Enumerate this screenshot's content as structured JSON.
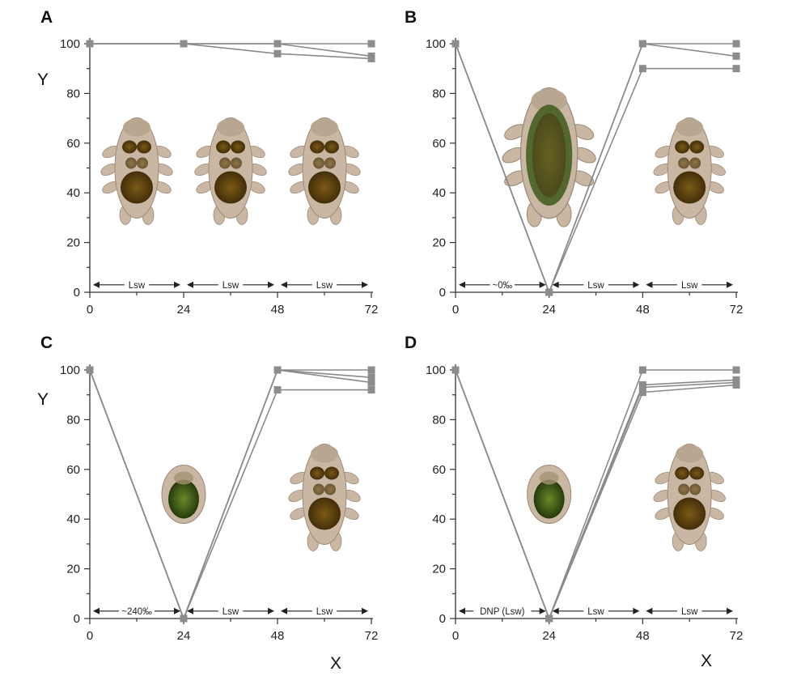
{
  "chart_data": [
    {
      "panel": "A",
      "type": "line",
      "ylabel": "Y",
      "xlabel": "",
      "xlim": [
        0,
        72
      ],
      "ylim": [
        0,
        100
      ],
      "xticks": [
        0,
        24,
        48,
        72
      ],
      "yticks": [
        0,
        20,
        40,
        60,
        80,
        100
      ],
      "series": [
        {
          "x": [
            0,
            24,
            48,
            72
          ],
          "y": [
            100,
            100,
            100,
            100
          ]
        },
        {
          "x": [
            0,
            24,
            48,
            72
          ],
          "y": [
            100,
            100,
            100,
            95
          ]
        },
        {
          "x": [
            0,
            24,
            48,
            72
          ],
          "y": [
            100,
            100,
            96,
            94
          ]
        }
      ],
      "intervals": [
        {
          "from": 0,
          "to": 24,
          "label": "Lsw"
        },
        {
          "from": 24,
          "to": 48,
          "label": "Lsw"
        },
        {
          "from": 48,
          "to": 72,
          "label": "Lsw"
        }
      ],
      "illustrations": [
        {
          "icon": "tardigrade-active-icon",
          "x": 12,
          "y": 50
        },
        {
          "icon": "tardigrade-active-icon",
          "x": 36,
          "y": 50
        },
        {
          "icon": "tardigrade-active-icon",
          "x": 60,
          "y": 50
        }
      ]
    },
    {
      "panel": "B",
      "type": "line",
      "ylabel": "",
      "xlabel": "",
      "xlim": [
        0,
        72
      ],
      "ylim": [
        0,
        100
      ],
      "xticks": [
        0,
        24,
        48,
        72
      ],
      "yticks": [
        0,
        20,
        40,
        60,
        80,
        100
      ],
      "series": [
        {
          "x": [
            0,
            24,
            48,
            72
          ],
          "y": [
            100,
            0,
            100,
            100
          ]
        },
        {
          "x": [
            0,
            24,
            48,
            72
          ],
          "y": [
            100,
            0,
            100,
            95
          ]
        },
        {
          "x": [
            0,
            24,
            48,
            72
          ],
          "y": [
            100,
            0,
            90,
            90
          ]
        }
      ],
      "intervals": [
        {
          "from": 0,
          "to": 24,
          "label": "~0‰"
        },
        {
          "from": 24,
          "to": 48,
          "label": "Lsw"
        },
        {
          "from": 48,
          "to": 72,
          "label": "Lsw"
        }
      ],
      "illustrations": [
        {
          "icon": "tardigrade-swollen-icon",
          "x": 24,
          "y": 56
        },
        {
          "icon": "tardigrade-active-icon",
          "x": 60,
          "y": 50
        }
      ]
    },
    {
      "panel": "C",
      "type": "line",
      "ylabel": "Y",
      "xlabel": "",
      "xlim": [
        0,
        72
      ],
      "ylim": [
        0,
        100
      ],
      "xticks": [
        0,
        24,
        48,
        72
      ],
      "yticks": [
        0,
        20,
        40,
        60,
        80,
        100
      ],
      "series": [
        {
          "x": [
            0,
            24,
            48,
            72
          ],
          "y": [
            100,
            0,
            100,
            100
          ]
        },
        {
          "x": [
            0,
            24,
            48,
            72
          ],
          "y": [
            100,
            0,
            100,
            97
          ]
        },
        {
          "x": [
            0,
            24,
            48,
            72
          ],
          "y": [
            100,
            0,
            100,
            95
          ]
        },
        {
          "x": [
            0,
            24,
            48,
            72
          ],
          "y": [
            100,
            0,
            92,
            92
          ]
        }
      ],
      "intervals": [
        {
          "from": 0,
          "to": 24,
          "label": "~240‰"
        },
        {
          "from": 24,
          "to": 48,
          "label": "Lsw"
        },
        {
          "from": 48,
          "to": 72,
          "label": "Lsw"
        }
      ],
      "illustrations": [
        {
          "icon": "tardigrade-contracted-icon",
          "x": 24,
          "y": 50
        },
        {
          "icon": "tardigrade-active-icon",
          "x": 60,
          "y": 50
        }
      ]
    },
    {
      "panel": "D",
      "type": "line",
      "ylabel": "",
      "xlabel": "X",
      "xlim": [
        0,
        72
      ],
      "ylim": [
        0,
        100
      ],
      "xticks": [
        0,
        24,
        48,
        72
      ],
      "yticks": [
        0,
        20,
        40,
        60,
        80,
        100
      ],
      "series": [
        {
          "x": [
            0,
            24,
            48,
            72
          ],
          "y": [
            100,
            0,
            100,
            100
          ]
        },
        {
          "x": [
            0,
            24,
            48,
            72
          ],
          "y": [
            100,
            0,
            94,
            96
          ]
        },
        {
          "x": [
            0,
            24,
            48,
            72
          ],
          "y": [
            100,
            0,
            93,
            95
          ]
        },
        {
          "x": [
            0,
            24,
            48,
            72
          ],
          "y": [
            100,
            0,
            91,
            94
          ]
        }
      ],
      "intervals": [
        {
          "from": 0,
          "to": 24,
          "label": "DNP (Lsw)"
        },
        {
          "from": 24,
          "to": 48,
          "label": "Lsw"
        },
        {
          "from": 48,
          "to": 72,
          "label": "Lsw"
        }
      ],
      "illustrations": [
        {
          "icon": "tardigrade-contracted-icon",
          "x": 24,
          "y": 50
        },
        {
          "icon": "tardigrade-active-icon",
          "x": 60,
          "y": 50
        }
      ]
    }
  ],
  "figure": {
    "bottom_xlabel_left": "X",
    "bottom_xlabel_right": "X",
    "colors": {
      "series": "#8a8a8a",
      "marker": "#8c8c8c",
      "axis": "#333333",
      "tardigrade_body": "#c9b7a4",
      "tardigrade_gut": "#6b5218",
      "tardigrade_green": "#3d5a1a"
    }
  }
}
